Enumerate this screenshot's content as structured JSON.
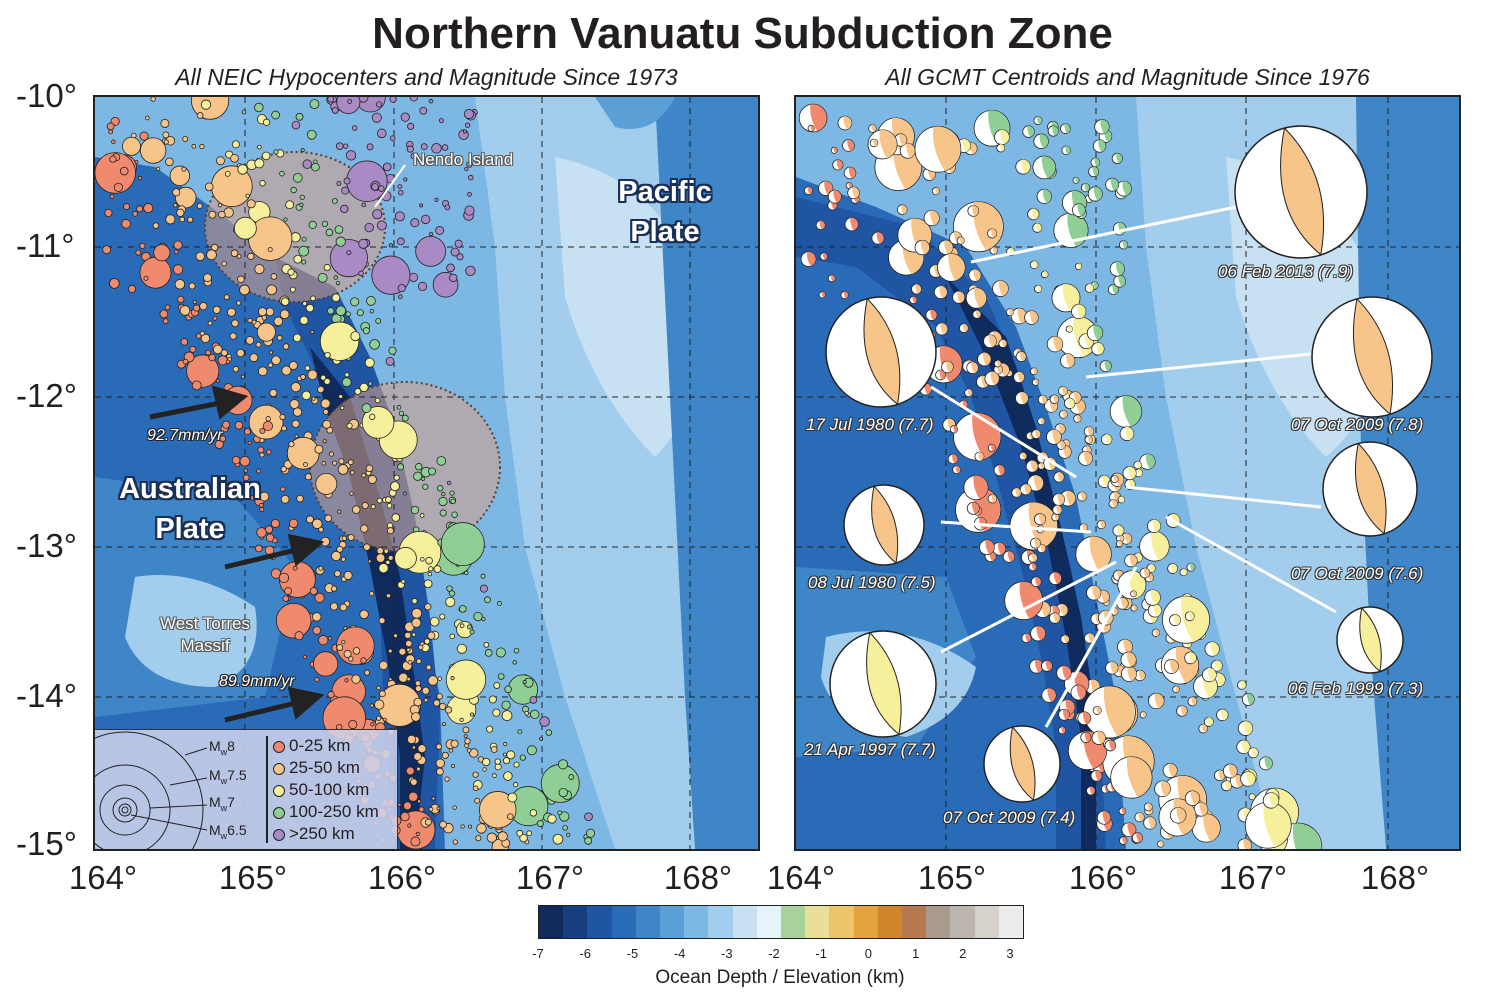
{
  "title": "Northern Vanuatu Subduction Zone",
  "left_panel": {
    "subtitle": "All NEIC Hypocenters and Magnitude Since 1973",
    "labels": {
      "nendo": "Nendo Island",
      "pacific_1": "Pacific",
      "pacific_2": "Plate",
      "australian_1": "Australian",
      "australian_2": "Plate",
      "torres_1": "West Torres",
      "torres_2": "Massif",
      "rate_1": "92.7mm/yr",
      "rate_2": "89.9mm/yr"
    },
    "legend": {
      "magnitudes": [
        "8",
        "7.5",
        "7",
        "6.5"
      ],
      "mag_prefix": "M",
      "mag_sub": "w",
      "depths": [
        {
          "label": "0-25 km",
          "color": "#f08a6e"
        },
        {
          "label": "25-50 km",
          "color": "#f7c48a"
        },
        {
          "label": "50-100 km",
          "color": "#f6ef9c"
        },
        {
          "label": "100-250 km",
          "color": "#8fcf95"
        },
        {
          "label": ">250 km",
          "color": "#a98ac4"
        }
      ]
    }
  },
  "right_panel": {
    "subtitle": "All GCMT Centroids and Magnitude Since 1976",
    "events": [
      {
        "label": "06 Feb 2013 (7.9)"
      },
      {
        "label": "17 Jul 1980 (7.7)"
      },
      {
        "label": "07 Oct 2009 (7.8)"
      },
      {
        "label": "08 Jul 1980 (7.5)"
      },
      {
        "label": "07 Oct 2009 (7.6)"
      },
      {
        "label": "06 Feb 1999 (7.3)"
      },
      {
        "label": "21 Apr 1997 (7.7)"
      },
      {
        "label": "07 Oct 2009 (7.4)"
      }
    ]
  },
  "axes": {
    "y": [
      "-10°",
      "-11°",
      "-12°",
      "-13°",
      "-14°",
      "-15°"
    ],
    "x_left": [
      "164°",
      "165°",
      "166°",
      "167°",
      "168°"
    ],
    "x_right": [
      "164°",
      "165°",
      "166°",
      "167°",
      "168°"
    ]
  },
  "colorbar": {
    "title": "Ocean Depth / Elevation (km)",
    "ticks": [
      "-7",
      "-6",
      "-5",
      "-4",
      "-3",
      "-2",
      "-1",
      "0",
      "1",
      "2",
      "3"
    ],
    "colors": [
      "#0f2a5c",
      "#173f80",
      "#1f55a3",
      "#2a6bb8",
      "#3f86c8",
      "#5a9fd6",
      "#7db7e3",
      "#a3cdec",
      "#c7e1f3",
      "#e6f3fa",
      "#a9d29a",
      "#eadf9a",
      "#eec46a",
      "#e3a33d",
      "#d1852a",
      "#b5784f",
      "#a89a8c",
      "#bdb6ae",
      "#d6d1cb",
      "#ededec"
    ]
  }
}
